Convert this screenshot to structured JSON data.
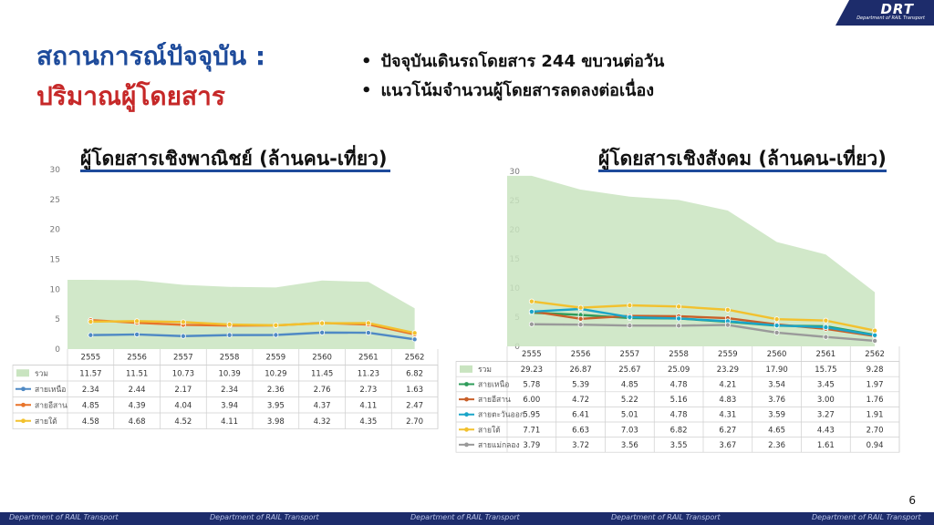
{
  "logo": {
    "text": "DRT",
    "sub": "Department of RAIL Transport"
  },
  "title_line1": "สถานการณ์ปัจจุบัน :",
  "title_line2": "ปริมาณผู้โดยสาร",
  "bullets": [
    "ปัจจุบันเดินรถโดยสาร 244 ขบวนต่อวัน",
    "แนวโน้มจำนวนผู้โดยสารลดลงต่อเนื่อง"
  ],
  "page_number": "6",
  "footer_text": "Department of RAIL Transport",
  "colors": {
    "title_blue": "#1e4b9b",
    "title_red": "#c62828",
    "area_green": "#c9e4c0",
    "footer_navy": "#1d2c6b"
  },
  "chart_data": [
    {
      "type": "area+line",
      "title": "ผู้โดยสารเชิงพาณิชย์ (ล้านคน-เที่ยว)",
      "ylim": [
        0,
        30
      ],
      "yticks": [
        0,
        5,
        10,
        15,
        20,
        25,
        30
      ],
      "categories": [
        "2555",
        "2556",
        "2557",
        "2558",
        "2559",
        "2560",
        "2561",
        "2562"
      ],
      "series": [
        {
          "name": "รวม",
          "kind": "area",
          "color": "#c9e4c0",
          "values": [
            "11.57",
            "11.51",
            "10.73",
            "10.39",
            "10.29",
            "11.45",
            "11.23",
            "6.82"
          ]
        },
        {
          "name": "สายเหนือ",
          "kind": "line",
          "color": "#4f89c4",
          "values": [
            "2.34",
            "2.44",
            "2.17",
            "2.34",
            "2.36",
            "2.76",
            "2.73",
            "1.63"
          ]
        },
        {
          "name": "สายอีสาน",
          "kind": "line",
          "color": "#e8742a",
          "values": [
            "4.85",
            "4.39",
            "4.04",
            "3.94",
            "3.95",
            "4.37",
            "4.11",
            "2.47"
          ]
        },
        {
          "name": "สายใต้",
          "kind": "line",
          "color": "#f2c12e",
          "values": [
            "4.58",
            "4.68",
            "4.52",
            "4.11",
            "3.98",
            "4.32",
            "4.35",
            "2.70"
          ]
        }
      ]
    },
    {
      "type": "area+line",
      "title": "ผู้โดยสารเชิงสังคม (ล้านคน-เที่ยว)",
      "ylim": [
        0,
        30
      ],
      "yticks": [
        0,
        5,
        10,
        15,
        20,
        25,
        30
      ],
      "categories": [
        "2555",
        "2556",
        "2557",
        "2558",
        "2559",
        "2560",
        "2561",
        "2562"
      ],
      "series": [
        {
          "name": "รวม",
          "kind": "area",
          "color": "#c9e4c0",
          "values": [
            "29.23",
            "26.87",
            "25.67",
            "25.09",
            "23.29",
            "17.90",
            "15.75",
            "9.28"
          ]
        },
        {
          "name": "สายเหนือ",
          "kind": "line",
          "color": "#2e9c5a",
          "values": [
            "5.78",
            "5.39",
            "4.85",
            "4.78",
            "4.21",
            "3.54",
            "3.45",
            "1.97"
          ]
        },
        {
          "name": "สายอีสาน",
          "kind": "line",
          "color": "#c8602a",
          "values": [
            "6.00",
            "4.72",
            "5.22",
            "5.16",
            "4.83",
            "3.76",
            "3.00",
            "1.76"
          ]
        },
        {
          "name": "สายตะวันออก",
          "kind": "line",
          "color": "#1aa5c8",
          "values": [
            "5.95",
            "6.41",
            "5.01",
            "4.78",
            "4.31",
            "3.59",
            "3.27",
            "1.91"
          ]
        },
        {
          "name": "สายใต้",
          "kind": "line",
          "color": "#f2c12e",
          "values": [
            "7.71",
            "6.63",
            "7.03",
            "6.82",
            "6.27",
            "4.65",
            "4.43",
            "2.70"
          ]
        },
        {
          "name": "สายแม่กลอง",
          "kind": "line",
          "color": "#9a9a9a",
          "values": [
            "3.79",
            "3.72",
            "3.56",
            "3.55",
            "3.67",
            "2.36",
            "1.61",
            "0.94"
          ]
        }
      ]
    }
  ]
}
